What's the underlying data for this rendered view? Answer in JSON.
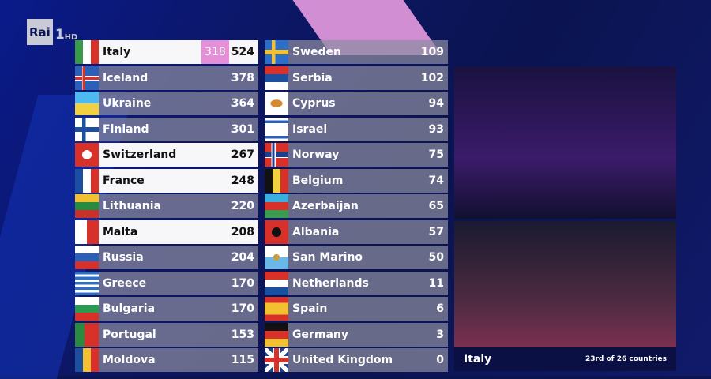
{
  "logo": {
    "brand": "Rai",
    "channel": "1",
    "hd": "HD"
  },
  "colors": {
    "highlight": "#e58fd8",
    "row_grey": "#8c8ca0",
    "row_white": "#f7f7fa",
    "background": "#0b1450"
  },
  "left": [
    {
      "country": "Italy",
      "points": "524",
      "added": "318",
      "highlight": true,
      "flag": "italy"
    },
    {
      "country": "Iceland",
      "points": "378",
      "flag": "iceland"
    },
    {
      "country": "Ukraine",
      "points": "364",
      "flag": "ukraine"
    },
    {
      "country": "Finland",
      "points": "301",
      "flag": "finland"
    },
    {
      "country": "Switzerland",
      "points": "267",
      "highlight": true,
      "flag": "switzerland"
    },
    {
      "country": "France",
      "points": "248",
      "highlight": true,
      "flag": "france"
    },
    {
      "country": "Lithuania",
      "points": "220",
      "flag": "lithuania"
    },
    {
      "country": "Malta",
      "points": "208",
      "highlight": true,
      "flag": "malta"
    },
    {
      "country": "Russia",
      "points": "204",
      "flag": "russia"
    },
    {
      "country": "Greece",
      "points": "170",
      "flag": "greece"
    },
    {
      "country": "Bulgaria",
      "points": "170",
      "flag": "bulgaria"
    },
    {
      "country": "Portugal",
      "points": "153",
      "flag": "portugal"
    },
    {
      "country": "Moldova",
      "points": "115",
      "flag": "moldova"
    }
  ],
  "right": [
    {
      "country": "Sweden",
      "points": "109",
      "flag": "sweden"
    },
    {
      "country": "Serbia",
      "points": "102",
      "flag": "serbia"
    },
    {
      "country": "Cyprus",
      "points": "94",
      "flag": "cyprus"
    },
    {
      "country": "Israel",
      "points": "93",
      "flag": "israel"
    },
    {
      "country": "Norway",
      "points": "75",
      "flag": "norway"
    },
    {
      "country": "Belgium",
      "points": "74",
      "flag": "belgium"
    },
    {
      "country": "Azerbaijan",
      "points": "65",
      "flag": "azerbaijan"
    },
    {
      "country": "Albania",
      "points": "57",
      "flag": "albania"
    },
    {
      "country": "San Marino",
      "points": "50",
      "flag": "san-marino"
    },
    {
      "country": "Netherlands",
      "points": "11",
      "flag": "netherlands"
    },
    {
      "country": "Spain",
      "points": "6",
      "flag": "spain"
    },
    {
      "country": "Germany",
      "points": "3",
      "flag": "germany"
    },
    {
      "country": "United Kingdom",
      "points": "0",
      "flag": "united-kingdom"
    }
  ],
  "caption": {
    "country": "Italy",
    "status": "23rd of 26 countries"
  }
}
